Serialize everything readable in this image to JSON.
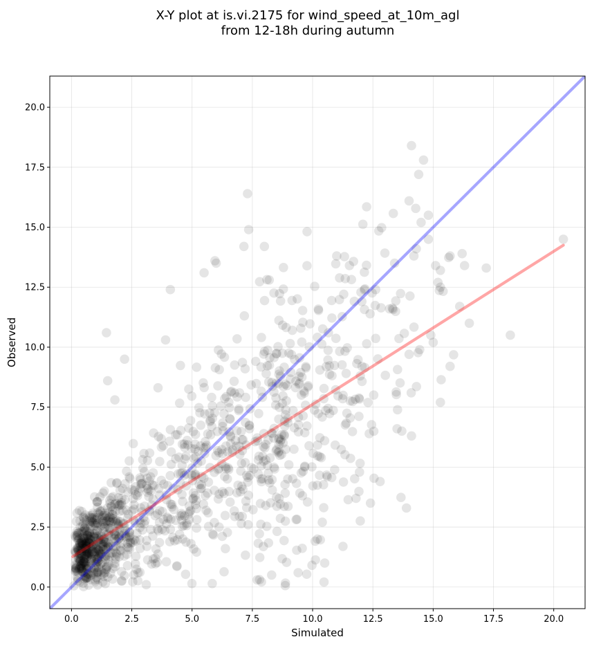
{
  "chart_data": {
    "type": "scatter",
    "title": [
      "X-Y plot at is.vi.2175 for wind_speed_at_10m_agl",
      "from 12-18h during autumn"
    ],
    "xlabel": "Simulated",
    "ylabel": "Observed",
    "xlim": [
      -0.9,
      21.3
    ],
    "ylim": [
      -0.9,
      21.3
    ],
    "xticks": [
      0.0,
      2.5,
      5.0,
      7.5,
      10.0,
      12.5,
      15.0,
      17.5,
      20.0
    ],
    "yticks": [
      0.0,
      2.5,
      5.0,
      7.5,
      10.0,
      12.5,
      15.0,
      17.5,
      20.0
    ],
    "xtick_labels": [
      "0.0",
      "2.5",
      "5.0",
      "7.5",
      "10.0",
      "12.5",
      "15.0",
      "17.5",
      "20.0"
    ],
    "ytick_labels": [
      "0.0",
      "2.5",
      "5.0",
      "7.5",
      "10.0",
      "12.5",
      "15.0",
      "17.5",
      "20.0"
    ],
    "grid": true,
    "marker_color": "#000000",
    "marker_alpha": 0.1,
    "identity_line": {
      "color": "#0000ff",
      "alpha": 0.35,
      "from": [
        -0.9,
        -0.9
      ],
      "to": [
        21.3,
        21.3
      ]
    },
    "regression_line": {
      "color": "#ff0000",
      "alpha": 0.35,
      "from": [
        0.05,
        1.27
      ],
      "to": [
        20.4,
        14.25
      ]
    },
    "points": {
      "explicit": [
        [
          14.1,
          18.4
        ],
        [
          14.6,
          17.8
        ],
        [
          14.4,
          17.2
        ],
        [
          7.3,
          16.4
        ],
        [
          14.0,
          16.1
        ],
        [
          7.35,
          14.9
        ],
        [
          14.8,
          15.5
        ],
        [
          14.5,
          15.2
        ],
        [
          7.15,
          14.2
        ],
        [
          5.95,
          13.6
        ],
        [
          6.0,
          13.5
        ],
        [
          5.5,
          13.1
        ],
        [
          8.2,
          12.8
        ],
        [
          11.0,
          13.8
        ],
        [
          13.4,
          13.5
        ],
        [
          14.3,
          14.1
        ],
        [
          15.1,
          13.4
        ],
        [
          15.3,
          13.2
        ],
        [
          15.7,
          13.8
        ],
        [
          16.2,
          13.9
        ],
        [
          16.3,
          13.4
        ],
        [
          17.2,
          13.3
        ],
        [
          18.2,
          10.5
        ],
        [
          20.4,
          14.5
        ],
        [
          15.3,
          12.5
        ],
        [
          15.2,
          12.7
        ],
        [
          14.8,
          14.5
        ],
        [
          14.2,
          13.8
        ],
        [
          16.1,
          11.7
        ],
        [
          16.5,
          11.0
        ],
        [
          15.7,
          9.2
        ],
        [
          15.3,
          7.7
        ],
        [
          14.1,
          6.3
        ],
        [
          13.5,
          6.6
        ],
        [
          13.7,
          6.5
        ],
        [
          14.0,
          9.7
        ],
        [
          4.1,
          12.4
        ],
        [
          1.45,
          10.6
        ],
        [
          3.9,
          10.3
        ],
        [
          2.2,
          9.5
        ],
        [
          1.5,
          8.6
        ],
        [
          1.8,
          7.8
        ],
        [
          0.1,
          0.05
        ],
        [
          0.5,
          0.02
        ],
        [
          3.1,
          0.1
        ],
        [
          7.7,
          0.3
        ],
        [
          8.3,
          0.5
        ],
        [
          9.4,
          0.6
        ],
        [
          10.5,
          1.0
        ],
        [
          8.0,
          14.2
        ],
        [
          10.2,
          2.0
        ],
        [
          12.4,
          3.5
        ],
        [
          12.8,
          4.4
        ],
        [
          10.4,
          2.7
        ],
        [
          11.8,
          3.7
        ],
        [
          14.9,
          10.5
        ],
        [
          15.0,
          10.2
        ]
      ],
      "generator": {
        "seed": 2175,
        "count": 1200,
        "regression_slope": 0.637,
        "regression_intercept": 1.27
      }
    }
  }
}
